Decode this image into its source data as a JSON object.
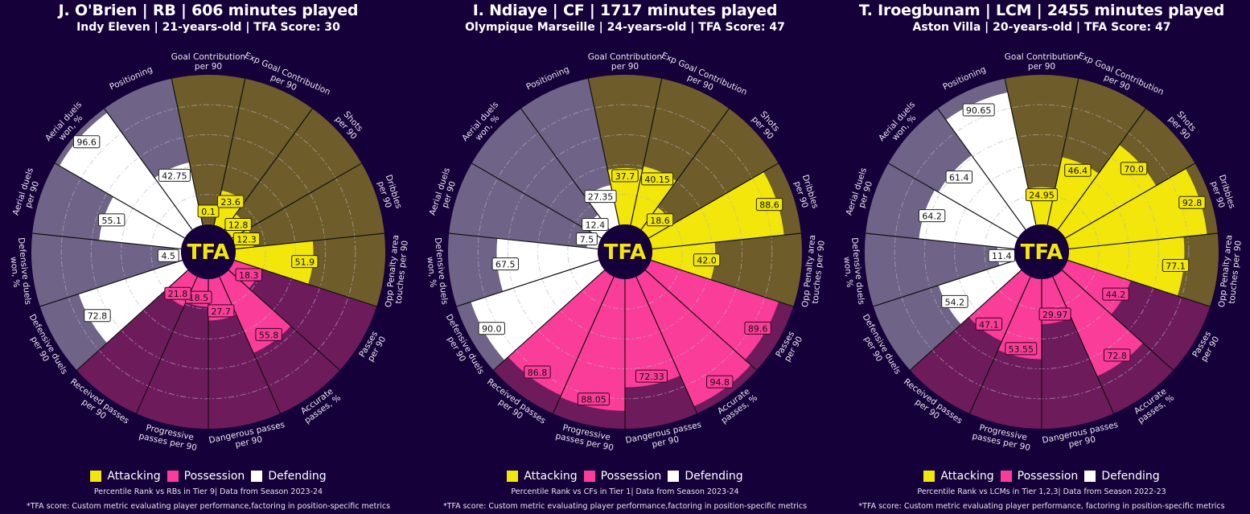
{
  "colors": {
    "background": "#16003a",
    "attacking": "#f2e60b",
    "attacking_bg": "#6e5d2a",
    "possession": "#fa3d98",
    "possession_bg": "#6e1b5c",
    "defending": "#ffffff",
    "defending_bg": "#6f6487",
    "logo_text": "#f2e60b"
  },
  "legend": [
    "Attacking",
    "Possession",
    "Defending"
  ],
  "logo": "TFA",
  "chart_data": [
    {
      "type": "pie",
      "title": "J. O'Brien | RB | 606 minutes played",
      "subtitle": "Indy Eleven | 21-years-old | TFA Score: 30",
      "note": "Percentile Rank vs RBs in Tier 9| Data from Season 2023-24",
      "footnote": "*TFA score: Custom metric evaluating player performance,factoring in position-specific metrics",
      "metrics": [
        {
          "label": "Goal Contribution\nper 90",
          "group": "Attacking",
          "value": 0.1
        },
        {
          "label": "Exp Goal Contribution\nper 90",
          "group": "Attacking",
          "value": 23.6
        },
        {
          "label": "Shots\nper 90",
          "group": "Attacking",
          "value": 12.8
        },
        {
          "label": "Dribbles\nper 90",
          "group": "Attacking",
          "value": 12.3
        },
        {
          "label": "Opp Penalty area\ntouches per 90",
          "group": "Attacking",
          "value": 51.9
        },
        {
          "label": "Passes\nper 90",
          "group": "Possession",
          "value": 18.3
        },
        {
          "label": "Accurate\npasses, %",
          "group": "Possession",
          "value": 55.8
        },
        {
          "label": "Dangerous passes\nper 90",
          "group": "Possession",
          "value": 27.7
        },
        {
          "label": "Progressive\npasses per 90",
          "group": "Possession",
          "value": 18.5
        },
        {
          "label": "Received passes\nper 90",
          "group": "Possession",
          "value": 21.8
        },
        {
          "label": "Defensive duels\nper 90",
          "group": "Defending",
          "value": 72.8
        },
        {
          "label": "Defensive duels\nwon, %",
          "group": "Defending",
          "value": 4.5
        },
        {
          "label": "Aerial duels\nper 90",
          "group": "Defending",
          "value": 55.1
        },
        {
          "label": "Aerial duels\nwon, %",
          "group": "Defending",
          "value": 96.6
        },
        {
          "label": "Positioning",
          "group": "Defending",
          "value": 42.75
        }
      ],
      "rlim": [
        0,
        100
      ]
    },
    {
      "type": "pie",
      "title": "I. Ndiaye | CF | 1717 minutes played",
      "subtitle": "Olympique Marseille | 24-years-old | TFA Score: 47",
      "note": "Percentile Rank vs CFs in Tier 1| Data from Season 2023-24",
      "footnote": "*TFA score: Custom metric evaluating player performance,factoring in position-specific metrics",
      "metrics": [
        {
          "label": "Goal Contribution\nper 90",
          "group": "Attacking",
          "value": 37.7
        },
        {
          "label": "Exp Goal Contribution\nper 90",
          "group": "Attacking",
          "value": 40.15
        },
        {
          "label": "Shots\nper 90",
          "group": "Attacking",
          "value": 18.6
        },
        {
          "label": "Dribbles\nper 90",
          "group": "Attacking",
          "value": 88.6
        },
        {
          "label": "Opp Penalty area\ntouches per 90",
          "group": "Attacking",
          "value": 42.0
        },
        {
          "label": "Passes\nper 90",
          "group": "Possession",
          "value": 89.6
        },
        {
          "label": "Accurate\npasses, %",
          "group": "Possession",
          "value": 94.8
        },
        {
          "label": "Dangerous passes\nper 90",
          "group": "Possession",
          "value": 72.33
        },
        {
          "label": "Progressive\npasses per 90",
          "group": "Possession",
          "value": 88.05
        },
        {
          "label": "Received passes\nper 90",
          "group": "Possession",
          "value": 86.8
        },
        {
          "label": "Defensive duels\nper 90",
          "group": "Defending",
          "value": 90.0
        },
        {
          "label": "Defensive duels\nwon, %",
          "group": "Defending",
          "value": 67.5
        },
        {
          "label": "Aerial duels\nper 90",
          "group": "Defending",
          "value": 7.5
        },
        {
          "label": "Aerial duels\nwon, %",
          "group": "Defending",
          "value": 12.4
        },
        {
          "label": "Positioning",
          "group": "Defending",
          "value": 27.35
        }
      ],
      "rlim": [
        0,
        100
      ]
    },
    {
      "type": "pie",
      "title": "T. Iroegbunam | LCM | 2455 minutes played",
      "subtitle": "Aston Villa | 20-years-old | TFA Score: 47",
      "note": "Percentile Rank vs LCMs in Tier 1,2,3| Data from Season 2022-23",
      "footnote": "*TFA score: Custom metric evaluating player performance, factoring in position-specific metrics",
      "metrics": [
        {
          "label": "Goal Contribution\nper 90",
          "group": "Attacking",
          "value": 24.95
        },
        {
          "label": "Exp Goal Contribution\nper 90",
          "group": "Attacking",
          "value": 46.4
        },
        {
          "label": "Shots\nper 90",
          "group": "Attacking",
          "value": 70.0
        },
        {
          "label": "Dribbles\nper 90",
          "group": "Attacking",
          "value": 92.8
        },
        {
          "label": "Opp Penalty area\ntouches per 90",
          "group": "Attacking",
          "value": 77.1
        },
        {
          "label": "Passes\nper 90",
          "group": "Possession",
          "value": 44.2
        },
        {
          "label": "Accurate\npasses, %",
          "group": "Possession",
          "value": 72.8
        },
        {
          "label": "Dangerous passes\nper 90",
          "group": "Possession",
          "value": 29.97
        },
        {
          "label": "Progressive\npasses per 90",
          "group": "Possession",
          "value": 53.55
        },
        {
          "label": "Received passes\nper 90",
          "group": "Possession",
          "value": 47.1
        },
        {
          "label": "Defensive duels\nper 90",
          "group": "Defending",
          "value": 54.2
        },
        {
          "label": "Defensive duels\nwon, %",
          "group": "Defending",
          "value": 11.4
        },
        {
          "label": "Aerial duels\nper 90",
          "group": "Defending",
          "value": 64.2
        },
        {
          "label": "Aerial duels\nwon, %",
          "group": "Defending",
          "value": 61.4
        },
        {
          "label": "Positioning",
          "group": "Defending",
          "value": 90.65
        }
      ],
      "rlim": [
        0,
        100
      ]
    }
  ]
}
